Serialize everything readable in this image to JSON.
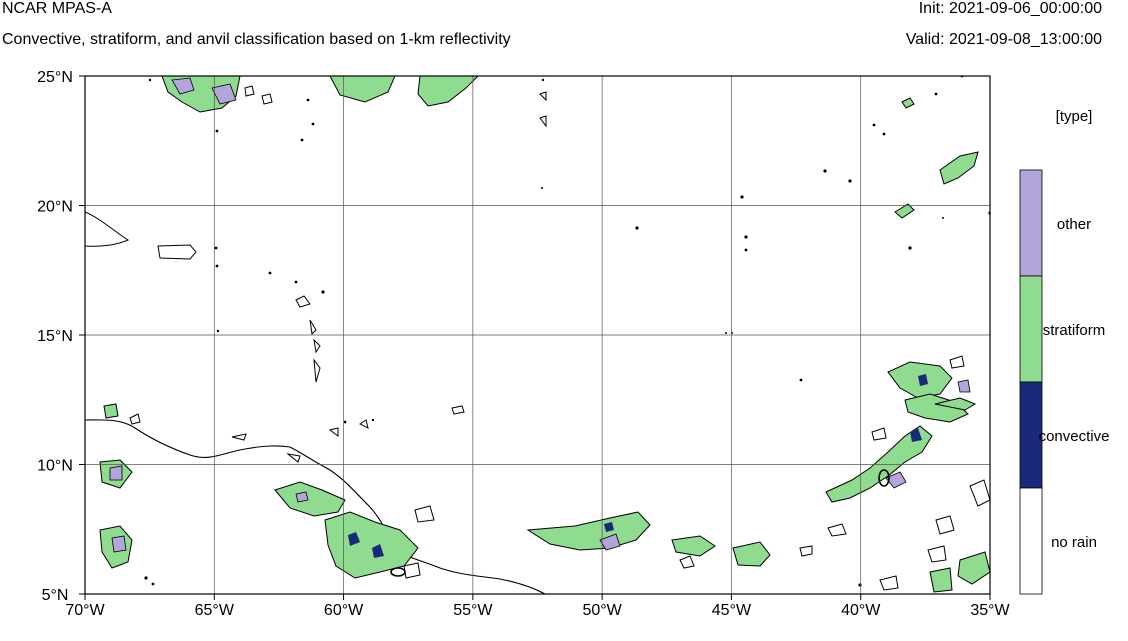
{
  "header": {
    "model": "NCAR MPAS-A",
    "subtitle": "Convective, stratiform, and anvil classification based on 1-km reflectivity",
    "init": "Init: 2021-09-06_00:00:00",
    "valid": "Valid: 2021-09-08_13:00:00"
  },
  "map": {
    "projection": "cylindrical equidistant",
    "lon_range": [
      -70,
      -35
    ],
    "lat_range": [
      5,
      25
    ],
    "lat_ticks": [
      "5°N",
      "10°N",
      "15°N",
      "20°N",
      "25°N"
    ],
    "lon_ticks": [
      "70°W",
      "65°W",
      "60°W",
      "55°W",
      "50°W",
      "45°W",
      "40°W",
      "35°W"
    ],
    "gridlines": true
  },
  "legend": {
    "title": "[type]",
    "categories": [
      {
        "label": "other",
        "color": "#b3a4d9"
      },
      {
        "label": "stratiform",
        "color": "#8fdb8f"
      },
      {
        "label": "convective",
        "color": "#1a2a7a"
      },
      {
        "label": "no rain",
        "color": "#ffffff"
      }
    ]
  },
  "colors": {
    "stratiform": "#8fdb8f",
    "other": "#b3a4d9",
    "convective": "#1a2a7a",
    "outline": "#000000"
  }
}
